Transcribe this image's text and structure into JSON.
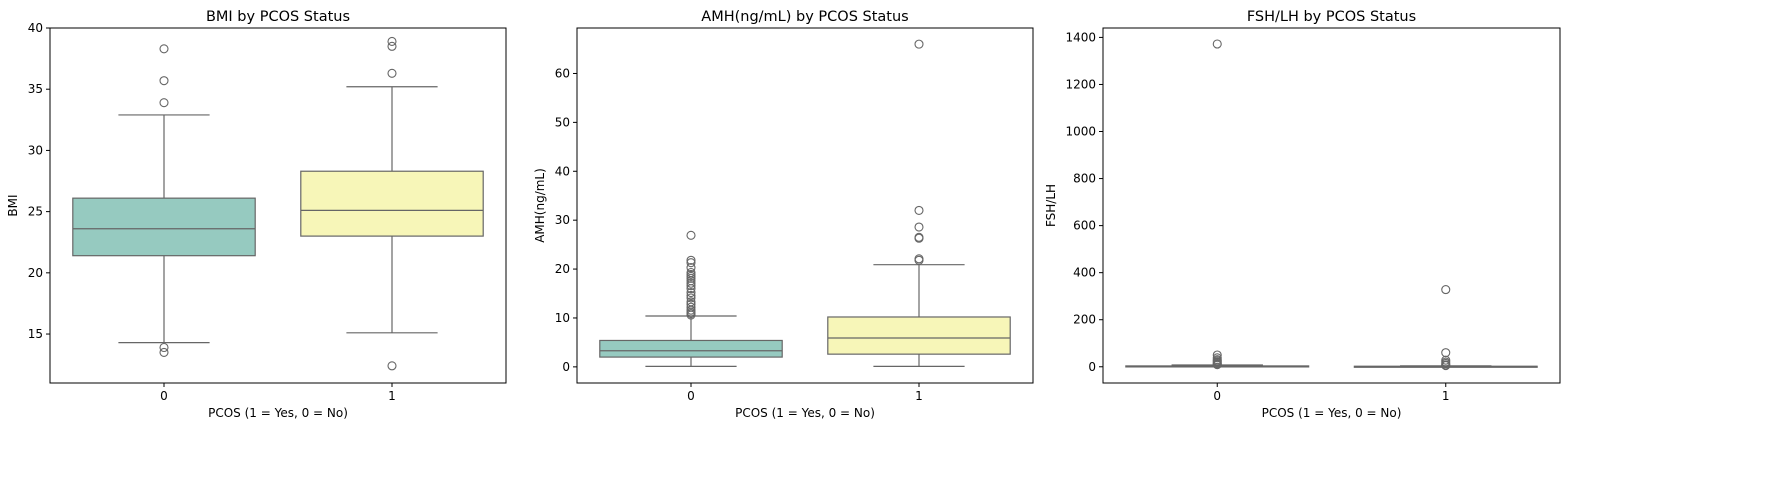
{
  "colors": {
    "group0": "#96cac0",
    "group1": "#f7f6b8",
    "line": "#666666",
    "axis": "#000000"
  },
  "chart_data": [
    {
      "type": "box",
      "title": "BMI by PCOS Status",
      "xlabel": "PCOS (1 = Yes, 0 = No)",
      "ylabel": "BMI",
      "categories": [
        "0",
        "1"
      ],
      "ylim": [
        11.0,
        40.0
      ],
      "yticks": [
        15,
        20,
        25,
        30,
        35,
        40
      ],
      "grid": false,
      "boxes": [
        {
          "category": "0",
          "whisker_low": 14.3,
          "q1": 21.4,
          "median": 23.6,
          "q3": 26.1,
          "whisker_high": 32.9,
          "outliers": [
            13.9,
            13.5,
            33.9,
            35.7,
            38.3
          ]
        },
        {
          "category": "1",
          "whisker_low": 15.1,
          "q1": 23.0,
          "median": 25.1,
          "q3": 28.3,
          "whisker_high": 35.2,
          "outliers": [
            12.4,
            36.3,
            38.5,
            38.9
          ]
        }
      ]
    },
    {
      "type": "box",
      "title": "AMH(ng/mL) by PCOS Status",
      "xlabel": "PCOS (1 = Yes, 0 = No)",
      "ylabel": "AMH(ng/mL)",
      "categories": [
        "0",
        "1"
      ],
      "ylim": [
        -3.3,
        69.3
      ],
      "yticks": [
        0,
        10,
        20,
        30,
        40,
        50,
        60
      ],
      "grid": false,
      "boxes": [
        {
          "category": "0",
          "whisker_low": 0.1,
          "q1": 2.0,
          "median": 3.3,
          "q3": 5.4,
          "whisker_high": 10.4,
          "outliers": [
            10.6,
            10.9,
            11.2,
            11.6,
            12.2,
            12.8,
            13.3,
            14.1,
            14.6,
            15.2,
            16.0,
            16.6,
            17.1,
            17.6,
            18.1,
            18.5,
            18.9,
            19.3,
            20.3,
            21.3,
            21.8,
            26.9
          ]
        },
        {
          "category": "1",
          "whisker_low": 0.1,
          "q1": 2.6,
          "median": 5.9,
          "q3": 10.2,
          "whisker_high": 20.9,
          "outliers": [
            21.8,
            22.1,
            26.3,
            26.5,
            28.6,
            32.0,
            66.0
          ]
        }
      ]
    },
    {
      "type": "box",
      "title": "FSH/LH by PCOS Status",
      "xlabel": "PCOS (1 = Yes, 0 = No)",
      "ylabel": "FSH/LH",
      "categories": [
        "0",
        "1"
      ],
      "ylim": [
        -69.0,
        1440.0
      ],
      "yticks": [
        0,
        200,
        400,
        600,
        800,
        1000,
        1200,
        1400
      ],
      "grid": false,
      "boxes": [
        {
          "category": "0",
          "whisker_low": 0.5,
          "q1": 1.4,
          "median": 2.1,
          "q3": 3.6,
          "whisker_high": 7.5,
          "outliers": [
            9,
            12,
            16,
            20,
            25,
            30,
            38,
            50,
            1372
          ]
        },
        {
          "category": "1",
          "whisker_low": 0.2,
          "q1": 0.8,
          "median": 1.3,
          "q3": 2.1,
          "whisker_high": 4.0,
          "outliers": [
            5,
            8,
            14,
            20,
            28,
            60,
            328
          ]
        }
      ]
    }
  ]
}
